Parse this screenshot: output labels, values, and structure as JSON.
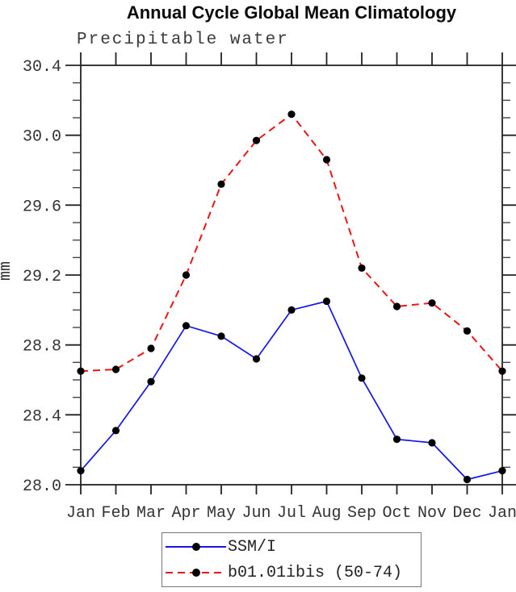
{
  "header": {
    "title": "Annual Cycle Global Mean Climatology"
  },
  "chart": {
    "subtitle": "Precipitable water",
    "ylabel": "mm"
  },
  "chart_data": {
    "type": "line",
    "title": "Annual Cycle Global Mean Climatology",
    "subtitle": "Precipitable water",
    "xlabel": "",
    "ylabel": "mm",
    "categories": [
      "Jan",
      "Feb",
      "Mar",
      "Apr",
      "May",
      "Jun",
      "Jul",
      "Aug",
      "Sep",
      "Oct",
      "Nov",
      "Dec",
      "Jan"
    ],
    "series": [
      {
        "name": "SSM/I",
        "color": "#1414ef",
        "style": "solid",
        "marker": "circle",
        "marker_color": "#000000",
        "values": [
          28.08,
          28.31,
          28.59,
          28.91,
          28.85,
          28.72,
          29.0,
          29.05,
          28.61,
          28.26,
          28.24,
          28.03,
          28.08
        ]
      },
      {
        "name": "b01.01ibis (50-74)",
        "color": "#ef1414",
        "style": "dashed",
        "marker": "circle",
        "marker_color": "#000000",
        "values": [
          28.65,
          28.66,
          28.78,
          29.2,
          29.72,
          29.97,
          30.12,
          29.86,
          29.24,
          29.02,
          29.04,
          28.88,
          28.65
        ]
      }
    ],
    "ylim": [
      28.0,
      30.4
    ],
    "ytick_labels": [
      "28.0",
      "28.4",
      "28.8",
      "29.2",
      "29.6",
      "30.0",
      "30.4"
    ],
    "y_major_step": 0.4,
    "y_minor_step": 0.1,
    "grid": false,
    "legend_position": "bottom-center",
    "axis_color": "#222222",
    "tick_label_color": "#333333"
  }
}
